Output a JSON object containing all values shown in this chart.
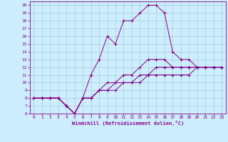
{
  "xlabel": "Windchill (Refroidissement éolien,°C)",
  "bg_color": "#cceeff",
  "line_color": "#880088",
  "grid_color": "#aacccc",
  "xlim": [
    -0.5,
    23.5
  ],
  "ylim": [
    6,
    20.5
  ],
  "xticks": [
    0,
    1,
    2,
    3,
    4,
    5,
    6,
    7,
    8,
    9,
    10,
    11,
    12,
    13,
    14,
    15,
    16,
    17,
    18,
    19,
    20,
    21,
    22,
    23
  ],
  "yticks": [
    6,
    7,
    8,
    9,
    10,
    11,
    12,
    13,
    14,
    15,
    16,
    17,
    18,
    19,
    20
  ],
  "series": [
    {
      "x": [
        0,
        1,
        2,
        3,
        4,
        5,
        6,
        7,
        8,
        9,
        10,
        11,
        12,
        13,
        14,
        15,
        16,
        17,
        18,
        19,
        20,
        21,
        22,
        23
      ],
      "y": [
        8,
        8,
        8,
        8,
        7,
        6,
        8,
        11,
        13,
        16,
        15,
        18,
        18,
        19,
        20,
        20,
        19,
        14,
        13,
        13,
        12,
        12,
        12,
        12
      ]
    },
    {
      "x": [
        0,
        1,
        2,
        3,
        4,
        5,
        6,
        7,
        8,
        9,
        10,
        11,
        12,
        13,
        14,
        15,
        16,
        17,
        18,
        19,
        20,
        21,
        22,
        23
      ],
      "y": [
        8,
        8,
        8,
        8,
        7,
        6,
        8,
        8,
        9,
        10,
        10,
        11,
        11,
        12,
        13,
        13,
        13,
        12,
        12,
        12,
        12,
        12,
        12,
        12
      ]
    },
    {
      "x": [
        0,
        1,
        2,
        3,
        4,
        5,
        6,
        7,
        8,
        9,
        10,
        11,
        12,
        13,
        14,
        15,
        16,
        17,
        18,
        19,
        20,
        21,
        22,
        23
      ],
      "y": [
        8,
        8,
        8,
        8,
        7,
        6,
        8,
        8,
        9,
        9,
        10,
        10,
        10,
        11,
        11,
        12,
        12,
        12,
        12,
        12,
        12,
        12,
        12,
        12
      ]
    },
    {
      "x": [
        0,
        1,
        2,
        3,
        4,
        5,
        6,
        7,
        8,
        9,
        10,
        11,
        12,
        13,
        14,
        15,
        16,
        17,
        18,
        19,
        20,
        21,
        22,
        23
      ],
      "y": [
        8,
        8,
        8,
        8,
        7,
        6,
        8,
        8,
        9,
        9,
        9,
        10,
        10,
        10,
        11,
        11,
        11,
        11,
        11,
        11,
        12,
        12,
        12,
        12
      ]
    }
  ]
}
